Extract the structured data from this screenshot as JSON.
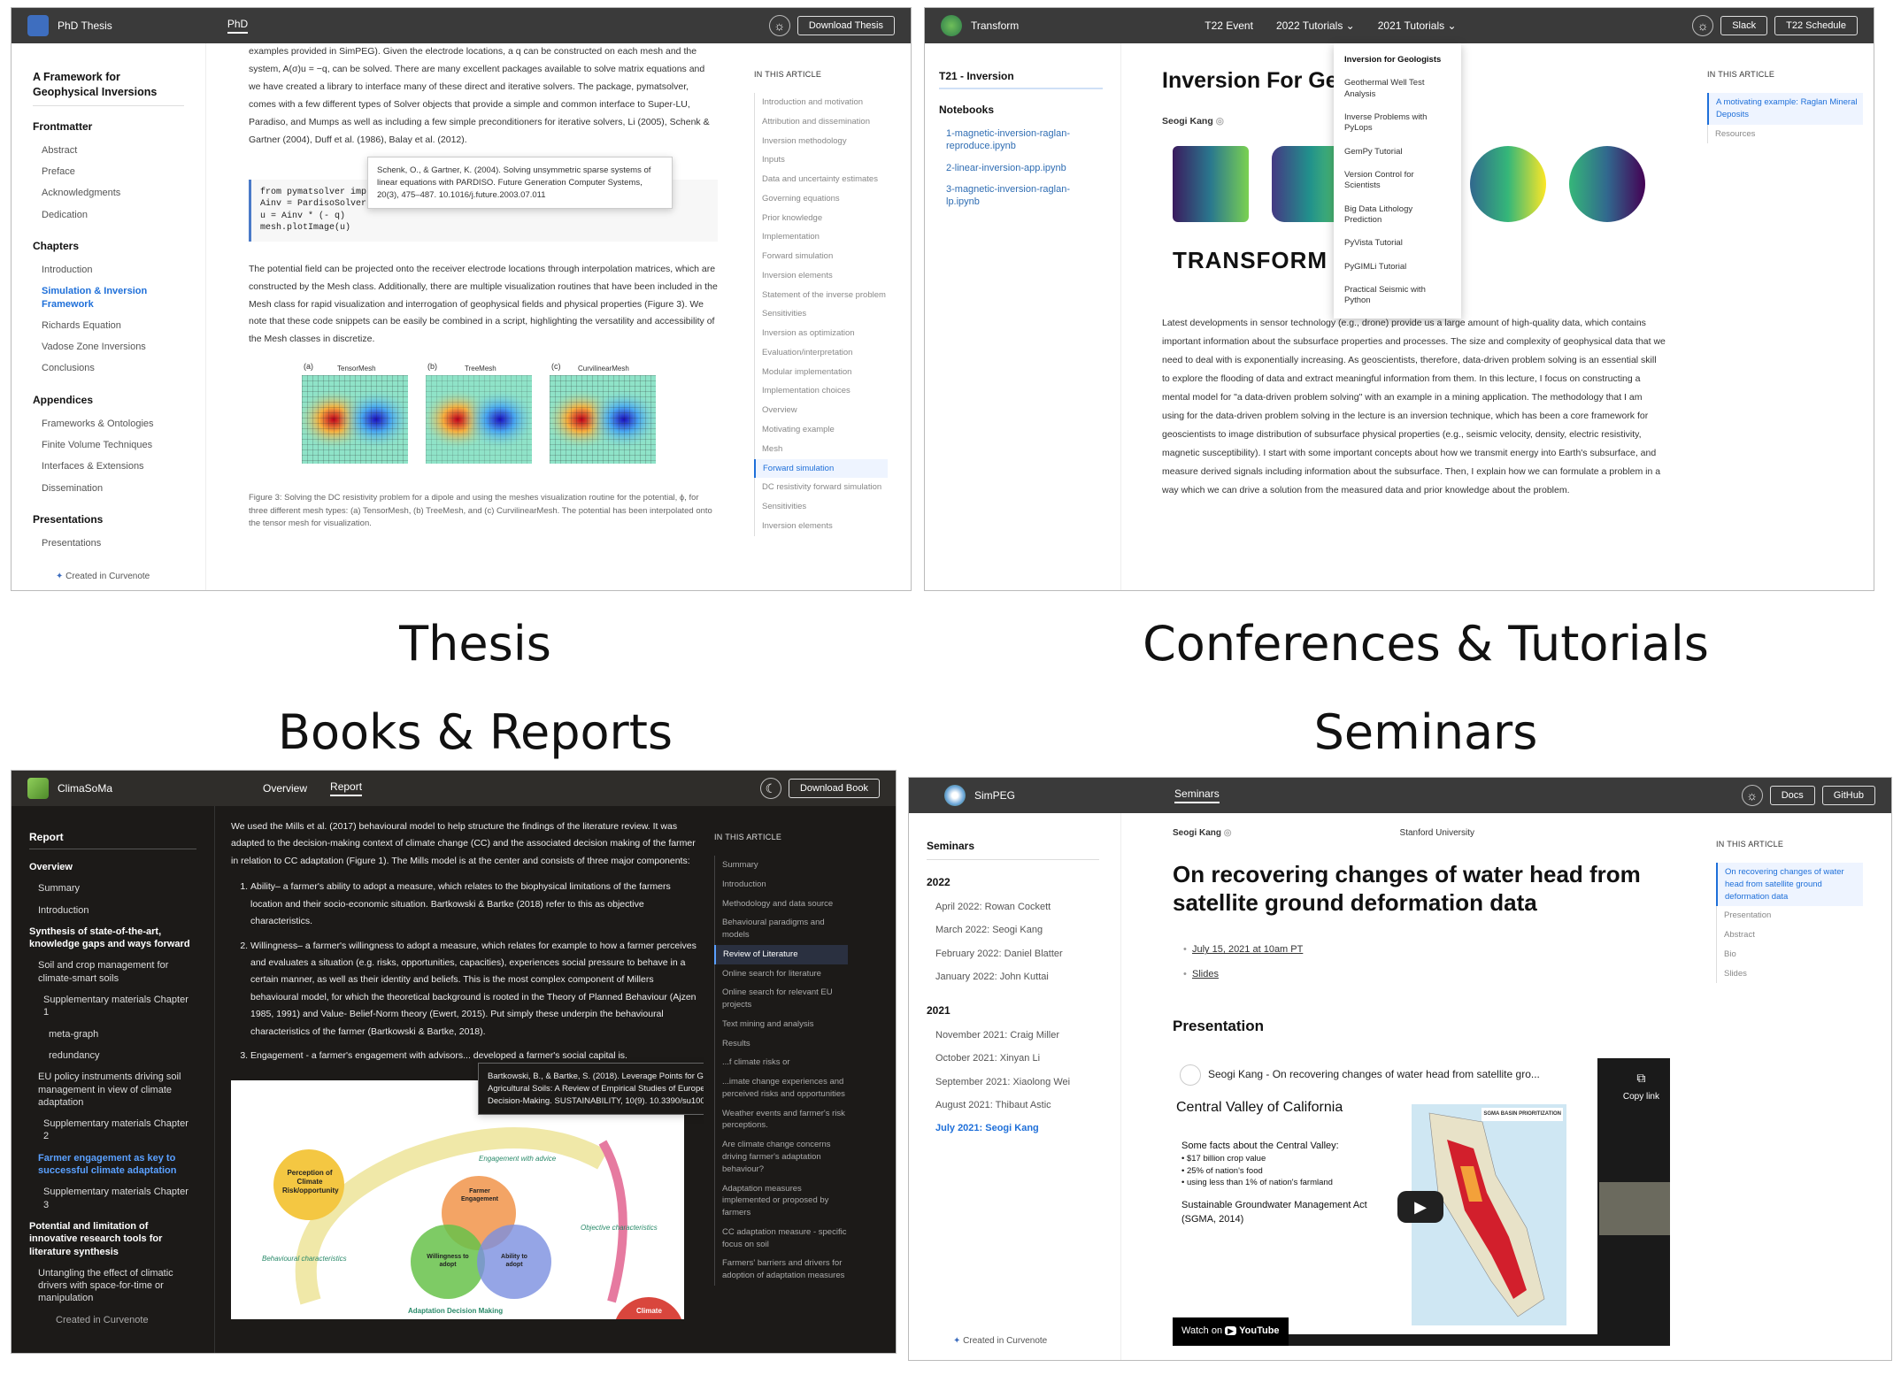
{
  "headings": {
    "thesis": "Thesis",
    "conferences": "Conferences & Tutorials",
    "books": "Books & Reports",
    "seminars": "Seminars"
  },
  "thesis": {
    "app_title": "PhD Thesis",
    "nav_active": "PhD",
    "download_button": "Download Thesis",
    "book_title": "A Framework for Geophysical Inversions",
    "sidebar": [
      {
        "heading": "Frontmatter",
        "items": [
          "Abstract",
          "Preface",
          "Acknowledgments",
          "Dedication"
        ]
      },
      {
        "heading": "Chapters",
        "items": [
          "Introduction",
          "Simulation & Inversion Framework",
          "Richards Equation",
          "Vadose Zone Inversions",
          "Conclusions"
        ]
      },
      {
        "heading": "Appendices",
        "items": [
          "Frameworks & Ontologies",
          "Finite Volume Techniques",
          "Interfaces & Extensions",
          "Dissemination"
        ]
      },
      {
        "heading": "Presentations",
        "items": [
          "Presentations"
        ]
      }
    ],
    "active_item": "Simulation & Inversion Framework",
    "footer": "Created in Curvenote",
    "para1": "examples provided in SimPEG). Given the electrode locations, a q can be constructed on each mesh and the system, A(σ)u = −q, can be solved. There are many excellent packages available to solve matrix equations and we have created a library to interface many of these direct and iterative solvers. The package, pymatsolver, comes with a few different types of Solver objects that provide a simple and common interface to Super-LU, Paradiso, and Mumps as well as including a few simple preconditioners for iterative solvers, Li (2005), Schenk & Gartner (2004), Duff et al. (1986), Balay et al. (2012).",
    "tooltip": "Schenk, O., & Gartner, K. (2004). Solving unsymmetric sparse systems of linear equations with PARDISO. Future Generation Computer Systems, 20(3), 475–487. 10.1016/j.future.2003.07.011",
    "code_lines": [
      "from pymatsolver imp",
      "Ainv = PardisoSolver(A)  # Create a solver object",
      "u = Ainv * (- q)",
      "mesh.plotImage(u)"
    ],
    "para2": "The potential field can be projected onto the receiver electrode locations through interpolation matrices, which are constructed by the Mesh class. Additionally, there are multiple visualization routines that have been included in the Mesh class for rapid visualization and interrogation of geophysical fields and physical properties (Figure 3). We note that these code snippets can be easily be combined in a script, highlighting the versatility and accessibility of the Mesh classes in discretize.",
    "figure_labels": [
      "(a)",
      "TensorMesh",
      "(b)",
      "TreeMesh",
      "(c)",
      "CurvilinearMesh"
    ],
    "caption": "Figure 3: Solving the DC resistivity problem for a dipole and using the meshes visualization routine for the potential, ϕ, for three different mesh types: (a) TensorMesh, (b) TreeMesh, and (c) CurvilinearMesh. The potential has been interpolated onto the tensor mesh for visualization.",
    "toc_title": "In this article",
    "toc": [
      "Introduction and motivation",
      "Attribution and dissemination",
      "Inversion methodology",
      "Inputs",
      "Data and uncertainty estimates",
      "Governing equations",
      "Prior knowledge",
      "Implementation",
      "Forward simulation",
      "Inversion elements",
      "Statement of the inverse problem",
      "Sensitivities",
      "Inversion as optimization",
      "Evaluation/interpretation",
      "Modular implementation",
      "Implementation choices",
      "Overview",
      "Motivating example",
      "Mesh",
      "Forward simulation",
      "DC resistivity forward simulation",
      "Sensitivities",
      "Inversion elements"
    ],
    "toc_active": 19
  },
  "transform": {
    "app_title": "Transform",
    "nav": [
      "T22 Event",
      "2022 Tutorials",
      "2021 Tutorials"
    ],
    "buttons": [
      "Slack",
      "T22 Schedule"
    ],
    "sidebar_title": "T21 - Inversion",
    "notebooks_heading": "Notebooks",
    "notebooks": [
      "1-magnetic-inversion-raglan-reproduce.ipynb",
      "2-linear-inversion-app.ipynb",
      "3-magnetic-inversion-raglan-lp.ipynb"
    ],
    "page_title": "Inversion For Geologists",
    "author": "Seogi Kang",
    "banner_text": "TRANSFORM 2021",
    "dropdown": [
      "Inversion for Geologists",
      "Geothermal Well Test Analysis",
      "Inverse Problems with PyLops",
      "GemPy Tutorial",
      "Version Control for Scientists",
      "Big Data Lithology Prediction",
      "PyVista Tutorial",
      "PyGIMLi Tutorial",
      "Practical Seismic with Python"
    ],
    "body": "Latest developments in sensor technology (e.g., drone) provide us a large amount of high-quality data, which contains important information about the subsurface properties and processes. The size and complexity of geophysical data that we need to deal with is exponentially increasing. As geoscientists, therefore, data-driven problem solving is an essential skill to explore the flooding of data and extract meaningful information from them. In this lecture, I focus on constructing a mental model for \"a data-driven problem solving\" with an example in a mining application. The methodology that I am using for the data-driven problem solving in the lecture is an inversion technique, which has been a core framework for geoscientists to image distribution of subsurface physical properties (e.g., seismic velocity, density, electric resistivity, magnetic susceptibility). I start with some important concepts about how we transmit energy into Earth's subsurface, and measure derived signals including information about the subsurface. Then, I explain how we can formulate a problem in a way which we can drive a solution from the measured data and prior knowledge about the problem.",
    "toc_title": "In this article",
    "toc": [
      "A motivating example: Raglan Mineral Deposits",
      "Resources"
    ]
  },
  "climasoma": {
    "app_title": "ClimaSoMa",
    "nav": [
      "Overview",
      "Report"
    ],
    "download_button": "Download Book",
    "sidebar_title": "Report",
    "sidebar": [
      "Overview",
      "Summary",
      "Introduction",
      "Synthesis of state-of-the-art, knowledge gaps and ways forward",
      "Soil and crop management for climate-smart soils",
      "Supplementary materials Chapter 1",
      "meta-graph",
      "redundancy",
      "EU policy instruments driving soil management in view of climate adaptation",
      "Supplementary materials Chapter 2",
      "Farmer engagement as key to successful climate adaptation",
      "Supplementary materials Chapter 3",
      "Potential and limitation of innovative research tools for literature synthesis",
      "Untangling the effect of climatic drivers with space-for-time or manipulation",
      "Created in Curvenote"
    ],
    "para": "We used the Mills et al. (2017) behavioural model to help structure the findings of the literature review. It was adapted to the decision-making context of climate change (CC) and the associated decision making of the farmer in relation to CC adaptation (Figure 1). The Mills model is at the center and consists of three major components:",
    "list": [
      "Ability– a farmer's ability to adopt a measure, which relates to the biophysical limitations of the farmers location and their socio-economic situation. Bartkowski & Bartke (2018) refer to this as objective characteristics.",
      "Willingness– a farmer's willingness to adopt a measure, which relates for example to how a farmer perceives and evaluates a situation (e.g. risks, opportunities, capacities), experiences social pressure to behave in a certain manner, as well as their identity and beliefs. This is the most complex component of Millers behavioural model, for which the theoretical background is rooted in the Theory of Planned Behaviour (Ajzen 1985, 1991) and Value- Belief-Norm theory (Ewert, 2015). Put simply these underpin the behavioural characteristics of the farmer (Bartkowski & Bartke, 2018).",
      "Engagement - a farmer's engagement with advisors... developed a farmer's social capital is."
    ],
    "tooltip": "Bartkowski, B., & Bartke, S. (2018). Leverage Points for Governing Agricultural Soils: A Review of Empirical Studies of European Farmers' Decision-Making. SUSTAINABILITY, 10(9). 10.3390/su10093179",
    "diagram_labels": [
      "Perception of Climate Risk/opportunity",
      "Farmer Engagement",
      "Willingness to adopt",
      "Ability to adopt",
      "Engagement with advice",
      "Objective characteristics",
      "Behavioural characteristics",
      "Adaptation Decision Making",
      "Climate"
    ],
    "toc_title": "In this article",
    "toc": [
      "Summary",
      "Introduction",
      "Methodology and data source",
      "Behavioural paradigms and models",
      "Review of Literature",
      "Online search for literature",
      "Online search for relevant EU projects",
      "Text mining and analysis",
      "Results",
      "...f climate risks or",
      "...imate change experiences and perceived risks and opportunities",
      "Weather events and farmer's risk perceptions.",
      "Are climate change concerns driving farmer's adaptation behaviour?",
      "Adaptation measures implemented or proposed by farmers",
      "CC adaptation measure - specific focus on soil",
      "Farmers' barriers and drivers for adoption of adaptation measures"
    ],
    "toc_active": 4
  },
  "simpeg": {
    "app_title": "SimPEG",
    "nav_active": "Seminars",
    "buttons": [
      "Docs",
      "GitHub"
    ],
    "sidebar_title": "Seminars",
    "groups": [
      {
        "year": "2022",
        "items": [
          "April 2022: Rowan Cockett",
          "March 2022: Seogi Kang",
          "February 2022: Daniel Blatter",
          "January 2022: John Kuttai"
        ]
      },
      {
        "year": "2021",
        "items": [
          "November 2021: Craig Miller",
          "October 2021: Xinyan Li",
          "September 2021: Xiaolong Wei",
          "August 2021: Thibaut Astic",
          "July 2021: Seogi Kang"
        ]
      }
    ],
    "active_item": "July 2021: Seogi Kang",
    "footer": "Created in Curvenote",
    "author": "Seogi Kang",
    "affiliation": "Stanford University",
    "page_title": "On recovering changes of water head from satellite ground deformation data",
    "bullets": [
      "July 15, 2021 at 10am PT",
      "Slides"
    ],
    "section": "Presentation",
    "video": {
      "title": "Seogi Kang - On recovering changes of water head from satellite gro...",
      "copy": "Copy link",
      "slide_title": "Central Valley of California",
      "facts_title": "Some facts about the Central Valley:",
      "facts": [
        "$17 billion crop value",
        "25% of nation's food",
        "using less than 1% of nation's farmland"
      ],
      "sgma": "Sustainable Groundwater Management Act (SGMA, 2014)",
      "map_title": "SGMA BASIN PRIORITIZATION",
      "watch": "Watch on",
      "yt": "YouTube"
    },
    "toc_title": "In this article",
    "toc": [
      "On recovering changes of water head from satellite ground deformation data",
      "Presentation",
      "Abstract",
      "Bio",
      "Slides"
    ]
  }
}
